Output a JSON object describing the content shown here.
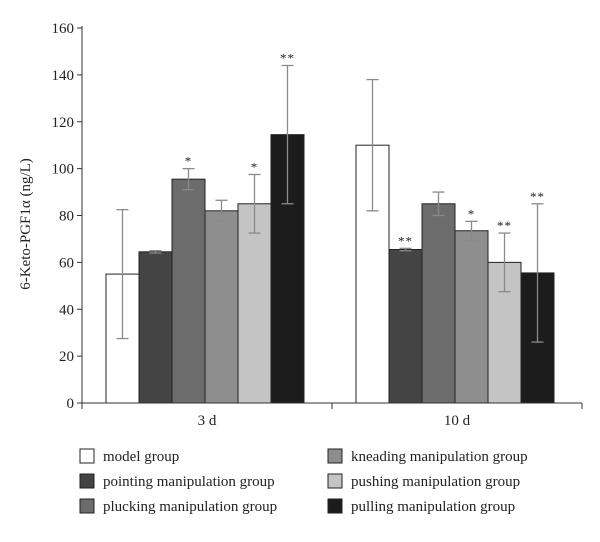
{
  "chart_data": {
    "type": "bar",
    "ylabel": "6-Keto-PGF1α (ng/L)",
    "xlabel": "",
    "ylim": [
      0,
      160
    ],
    "yticks": [
      0,
      20,
      40,
      60,
      80,
      100,
      120,
      140,
      160
    ],
    "grid": false,
    "legend_position": "bottom",
    "categories": [
      "3 d",
      "10 d"
    ],
    "series": [
      {
        "name": "model group",
        "color": "#ffffff",
        "values": [
          55,
          110
        ],
        "errors": [
          27.5,
          28
        ],
        "significance": [
          "",
          ""
        ]
      },
      {
        "name": "pointing manipulation group",
        "color": "#444444",
        "values": [
          64.5,
          65.5
        ],
        "errors": [
          0.5,
          0.5
        ],
        "significance": [
          "",
          "**"
        ]
      },
      {
        "name": "plucking manipulation group",
        "color": "#6c6c6c",
        "values": [
          95.5,
          85
        ],
        "errors": [
          4.5,
          5
        ],
        "significance": [
          "*",
          ""
        ]
      },
      {
        "name": "kneading manipulation group",
        "color": "#8e8e8e",
        "values": [
          82,
          73.5
        ],
        "errors": [
          4.5,
          4
        ],
        "significance": [
          "",
          "*"
        ]
      },
      {
        "name": "pushing manipulation group",
        "color": "#c4c4c4",
        "values": [
          85,
          60
        ],
        "errors": [
          12.5,
          12.5
        ],
        "significance": [
          "*",
          "**"
        ]
      },
      {
        "name": "pulling manipulation group",
        "color": "#1c1c1c",
        "values": [
          114.5,
          55.5
        ],
        "errors": [
          29.5,
          29.5
        ],
        "significance": [
          "**",
          "**"
        ]
      }
    ]
  }
}
